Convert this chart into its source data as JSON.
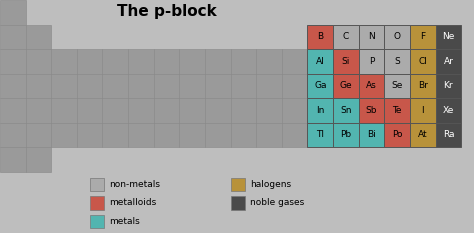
{
  "title": "The p-block",
  "bg_color": "#bebebe",
  "colors": {
    "non_metal": "#ababab",
    "metalloid": "#c8574a",
    "metal": "#52b5b0",
    "halogen": "#b8923a",
    "noble_gas": "#4a4a4a",
    "gray_cell": "#9a9a9a"
  },
  "elements": [
    {
      "symbol": "B",
      "row": 1,
      "col": 13,
      "type": "metalloid"
    },
    {
      "symbol": "C",
      "row": 1,
      "col": 14,
      "type": "non_metal"
    },
    {
      "symbol": "N",
      "row": 1,
      "col": 15,
      "type": "non_metal"
    },
    {
      "symbol": "O",
      "row": 1,
      "col": 16,
      "type": "non_metal"
    },
    {
      "symbol": "F",
      "row": 1,
      "col": 17,
      "type": "halogen"
    },
    {
      "symbol": "Ne",
      "row": 1,
      "col": 18,
      "type": "noble_gas"
    },
    {
      "symbol": "Al",
      "row": 2,
      "col": 13,
      "type": "metal"
    },
    {
      "symbol": "Si",
      "row": 2,
      "col": 14,
      "type": "metalloid"
    },
    {
      "symbol": "P",
      "row": 2,
      "col": 15,
      "type": "non_metal"
    },
    {
      "symbol": "S",
      "row": 2,
      "col": 16,
      "type": "non_metal"
    },
    {
      "symbol": "Cl",
      "row": 2,
      "col": 17,
      "type": "halogen"
    },
    {
      "symbol": "Ar",
      "row": 2,
      "col": 18,
      "type": "noble_gas"
    },
    {
      "symbol": "Ga",
      "row": 3,
      "col": 13,
      "type": "metal"
    },
    {
      "symbol": "Ge",
      "row": 3,
      "col": 14,
      "type": "metalloid"
    },
    {
      "symbol": "As",
      "row": 3,
      "col": 15,
      "type": "metalloid"
    },
    {
      "symbol": "Se",
      "row": 3,
      "col": 16,
      "type": "non_metal"
    },
    {
      "symbol": "Br",
      "row": 3,
      "col": 17,
      "type": "halogen"
    },
    {
      "symbol": "Kr",
      "row": 3,
      "col": 18,
      "type": "noble_gas"
    },
    {
      "symbol": "In",
      "row": 4,
      "col": 13,
      "type": "metal"
    },
    {
      "symbol": "Sn",
      "row": 4,
      "col": 14,
      "type": "metal"
    },
    {
      "symbol": "Sb",
      "row": 4,
      "col": 15,
      "type": "metalloid"
    },
    {
      "symbol": "Te",
      "row": 4,
      "col": 16,
      "type": "metalloid"
    },
    {
      "symbol": "I",
      "row": 4,
      "col": 17,
      "type": "halogen"
    },
    {
      "symbol": "Xe",
      "row": 4,
      "col": 18,
      "type": "noble_gas"
    },
    {
      "symbol": "Tl",
      "row": 5,
      "col": 13,
      "type": "metal"
    },
    {
      "symbol": "Pb",
      "row": 5,
      "col": 14,
      "type": "metal"
    },
    {
      "symbol": "Bi",
      "row": 5,
      "col": 15,
      "type": "metal"
    },
    {
      "symbol": "Po",
      "row": 5,
      "col": 16,
      "type": "metalloid"
    },
    {
      "symbol": "At",
      "row": 5,
      "col": 17,
      "type": "halogen"
    },
    {
      "symbol": "Ra",
      "row": 5,
      "col": 18,
      "type": "noble_gas"
    }
  ],
  "gray_layout": {
    "0": [
      1
    ],
    "1": [
      1,
      2
    ],
    "2": [
      1,
      2,
      3,
      4,
      5,
      6,
      7,
      8,
      9,
      10,
      11,
      12
    ],
    "3": [
      1,
      2,
      3,
      4,
      5,
      6,
      7,
      8,
      9,
      10,
      11,
      12
    ],
    "4": [
      1,
      2,
      3,
      4,
      5,
      6,
      7,
      8,
      9,
      10,
      11,
      12
    ],
    "5": [
      1,
      2,
      3,
      4,
      5,
      6,
      7,
      8,
      9,
      10,
      11,
      12
    ],
    "6": [
      1,
      2
    ]
  },
  "legend_items": [
    {
      "label": "non-metals",
      "color": "#ababab",
      "row": 0,
      "col": 0
    },
    {
      "label": "halogens",
      "color": "#b8923a",
      "row": 0,
      "col": 1
    },
    {
      "label": "metalloids",
      "color": "#c8574a",
      "row": 1,
      "col": 0
    },
    {
      "label": "noble gases",
      "color": "#4a4a4a",
      "row": 1,
      "col": 1
    },
    {
      "label": "metals",
      "color": "#52b5b0",
      "row": 2,
      "col": 0
    }
  ],
  "total_cols": 18,
  "total_rows": 6,
  "title_fontsize": 11,
  "elem_fontsize": 6.5
}
